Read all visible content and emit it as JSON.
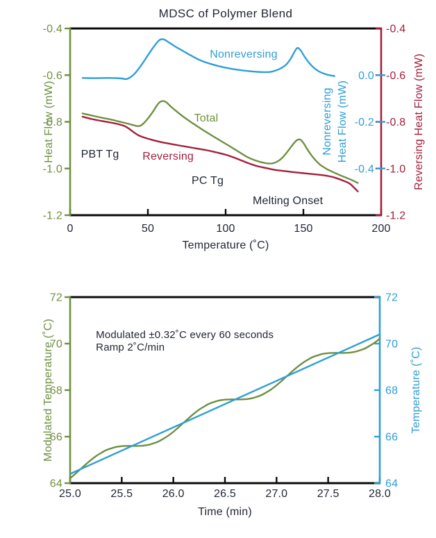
{
  "colors": {
    "green": "#6E8F3F",
    "blue": "#2E9ED6",
    "crimson": "#A31E3C",
    "ink": "#1E2430",
    "axis": "#0A0A0A"
  },
  "chart_data": [
    {
      "id": "mdsc",
      "type": "line",
      "title": "MDSC of Polymer Blend",
      "xlabel": "Temperature (˚C)",
      "xlim": [
        0,
        200
      ],
      "x_ticks": {
        "labels": [
          "0",
          "50",
          "100",
          "150",
          "200"
        ],
        "values": [
          0,
          50,
          100,
          150,
          200
        ]
      },
      "ylim": [
        -1.2,
        -0.4
      ],
      "grid": false,
      "legend": "inline-labels",
      "left_axis": {
        "title": "Heat Flow (mW)",
        "labels": [
          "-0.4",
          "-0.6",
          "-0.8",
          "-1.0",
          "-1.2"
        ],
        "values": [
          -0.4,
          -0.6,
          -0.8,
          -1.0,
          -1.2
        ],
        "color": "green"
      },
      "right_axis": {
        "title": "Reversing Heat Flow (mW)",
        "labels": [
          "-0.4",
          "-0.6",
          "-0.8",
          "-1.0",
          "-1.2"
        ],
        "values": [
          -0.4,
          -0.6,
          -0.8,
          -1.0,
          -1.2
        ],
        "color": "crimson"
      },
      "inner_right_axis": {
        "title_lines": [
          "Nonreversing",
          "Heat Flow (mW)"
        ],
        "labels": [
          "0.0",
          "-0.2",
          "-0.4"
        ],
        "values": [
          -0.6,
          -0.8,
          -1.0
        ],
        "color": "blue"
      },
      "series": [
        {
          "name": "Nonreversing",
          "color": "blue",
          "points": [
            [
              8,
              -0.612
            ],
            [
              15,
              -0.613
            ],
            [
              25,
              -0.612
            ],
            [
              33,
              -0.614
            ],
            [
              36,
              -0.617
            ],
            [
              39,
              -0.608
            ],
            [
              42,
              -0.59
            ],
            [
              46,
              -0.555
            ],
            [
              50,
              -0.515
            ],
            [
              54,
              -0.476
            ],
            [
              57,
              -0.452
            ],
            [
              59,
              -0.446
            ],
            [
              61,
              -0.449
            ],
            [
              64,
              -0.462
            ],
            [
              68,
              -0.479
            ],
            [
              73,
              -0.498
            ],
            [
              78,
              -0.517
            ],
            [
              84,
              -0.537
            ],
            [
              90,
              -0.551
            ],
            [
              96,
              -0.562
            ],
            [
              103,
              -0.572
            ],
            [
              110,
              -0.579
            ],
            [
              117,
              -0.584
            ],
            [
              124,
              -0.587
            ],
            [
              129,
              -0.586
            ],
            [
              133,
              -0.578
            ],
            [
              136,
              -0.569
            ],
            [
              139,
              -0.554
            ],
            [
              142,
              -0.528
            ],
            [
              144,
              -0.503
            ],
            [
              146,
              -0.484
            ],
            [
              148,
              -0.492
            ],
            [
              151,
              -0.523
            ],
            [
              154,
              -0.55
            ],
            [
              157,
              -0.57
            ],
            [
              160,
              -0.584
            ],
            [
              163,
              -0.593
            ],
            [
              166,
              -0.599
            ],
            [
              170,
              -0.604
            ]
          ]
        },
        {
          "name": "Total",
          "color": "green",
          "points": [
            [
              8,
              -0.764
            ],
            [
              14,
              -0.773
            ],
            [
              20,
              -0.782
            ],
            [
              26,
              -0.79
            ],
            [
              31,
              -0.798
            ],
            [
              36,
              -0.806
            ],
            [
              40,
              -0.813
            ],
            [
              43,
              -0.818
            ],
            [
              45,
              -0.817
            ],
            [
              47,
              -0.808
            ],
            [
              50,
              -0.786
            ],
            [
              53,
              -0.759
            ],
            [
              56,
              -0.728
            ],
            [
              58,
              -0.714
            ],
            [
              60,
              -0.711
            ],
            [
              62,
              -0.717
            ],
            [
              65,
              -0.736
            ],
            [
              69,
              -0.758
            ],
            [
              74,
              -0.784
            ],
            [
              79,
              -0.807
            ],
            [
              85,
              -0.833
            ],
            [
              91,
              -0.858
            ],
            [
              97,
              -0.882
            ],
            [
              103,
              -0.906
            ],
            [
              109,
              -0.931
            ],
            [
              114,
              -0.951
            ],
            [
              119,
              -0.965
            ],
            [
              123,
              -0.973
            ],
            [
              127,
              -0.978
            ],
            [
              130,
              -0.978
            ],
            [
              133,
              -0.971
            ],
            [
              136,
              -0.957
            ],
            [
              139,
              -0.934
            ],
            [
              142,
              -0.908
            ],
            [
              144,
              -0.891
            ],
            [
              146,
              -0.878
            ],
            [
              148,
              -0.876
            ],
            [
              150,
              -0.89
            ],
            [
              152,
              -0.912
            ],
            [
              155,
              -0.942
            ],
            [
              158,
              -0.966
            ],
            [
              161,
              -0.985
            ],
            [
              165,
              -1.002
            ],
            [
              169,
              -1.015
            ],
            [
              173,
              -1.027
            ],
            [
              177,
              -1.038
            ],
            [
              181,
              -1.049
            ],
            [
              185,
              -1.062
            ]
          ]
        },
        {
          "name": "Reversing",
          "color": "crimson",
          "points": [
            [
              8,
              -0.778
            ],
            [
              14,
              -0.788
            ],
            [
              20,
              -0.796
            ],
            [
              26,
              -0.803
            ],
            [
              31,
              -0.81
            ],
            [
              35,
              -0.818
            ],
            [
              38,
              -0.83
            ],
            [
              41,
              -0.845
            ],
            [
              44,
              -0.858
            ],
            [
              48,
              -0.868
            ],
            [
              53,
              -0.878
            ],
            [
              58,
              -0.886
            ],
            [
              64,
              -0.894
            ],
            [
              70,
              -0.901
            ],
            [
              76,
              -0.908
            ],
            [
              82,
              -0.915
            ],
            [
              88,
              -0.922
            ],
            [
              94,
              -0.931
            ],
            [
              100,
              -0.941
            ],
            [
              105,
              -0.952
            ],
            [
              110,
              -0.965
            ],
            [
              115,
              -0.978
            ],
            [
              120,
              -0.989
            ],
            [
              126,
              -0.998
            ],
            [
              132,
              -1.006
            ],
            [
              138,
              -1.011
            ],
            [
              144,
              -1.016
            ],
            [
              150,
              -1.02
            ],
            [
              156,
              -1.024
            ],
            [
              162,
              -1.028
            ],
            [
              168,
              -1.035
            ],
            [
              172,
              -1.043
            ],
            [
              176,
              -1.053
            ],
            [
              180,
              -1.066
            ],
            [
              185,
              -1.098
            ]
          ]
        }
      ],
      "annotations": [
        {
          "text": "Nonreversing",
          "x": 111.6,
          "y": -0.525,
          "color": "blue"
        },
        {
          "text": "Total",
          "x": 87.5,
          "y": -0.799,
          "color": "green"
        },
        {
          "text": "Reversing",
          "x": 63,
          "y": -0.962,
          "color": "crimson"
        },
        {
          "text": "PBT Tg",
          "x": 19.2,
          "y": -0.953,
          "color": "ink"
        },
        {
          "text": "PC Tg",
          "x": 88.4,
          "y": -1.066,
          "color": "ink"
        },
        {
          "text": "Melting Onset",
          "x": 140,
          "y": -1.152,
          "color": "ink"
        }
      ]
    },
    {
      "id": "modulation",
      "type": "line",
      "title": "",
      "xlabel": "Time (min)",
      "xlim": [
        25,
        28
      ],
      "x_ticks": {
        "labels": [
          "25.0",
          "25.5",
          "26.0",
          "26.5",
          "27.0",
          "27.5",
          "28.0"
        ],
        "values": [
          25,
          25.5,
          26,
          26.5,
          27,
          27.5,
          28
        ]
      },
      "ylim": [
        64,
        72
      ],
      "grid": false,
      "left_axis": {
        "title": "Modulated Temperature (˚C)",
        "labels": [
          "72",
          "70",
          "68",
          "66",
          "64"
        ],
        "values": [
          72,
          70,
          68,
          66,
          64
        ],
        "color": "green"
      },
      "right_axis": {
        "title": "Temperature (˚C)",
        "labels": [
          "72",
          "70",
          "68",
          "66",
          "64"
        ],
        "values": [
          72,
          70,
          68,
          66,
          64
        ],
        "color": "blue"
      },
      "series": [
        {
          "name": "Modulated Temperature",
          "color": "green",
          "x0": 25,
          "dx": 0.05,
          "values": [
            64.21,
            64.4,
            64.6,
            64.8,
            64.99,
            65.16,
            65.3,
            65.42,
            65.5,
            65.56,
            65.59,
            65.6,
            65.6,
            65.6,
            65.61,
            65.64,
            65.7,
            65.78,
            65.9,
            66.04,
            66.21,
            66.4,
            66.6,
            66.8,
            66.99,
            67.16,
            67.3,
            67.42,
            67.5,
            67.56,
            67.59,
            67.6,
            67.6,
            67.6,
            67.61,
            67.64,
            67.7,
            67.78,
            67.9,
            68.04,
            68.21,
            68.4,
            68.6,
            68.8,
            68.99,
            69.16,
            69.3,
            69.42,
            69.5,
            69.56,
            69.59,
            69.6,
            69.6,
            69.6,
            69.61,
            69.64,
            69.7,
            69.78,
            69.9,
            70.04,
            70.21
          ]
        },
        {
          "name": "Temperature",
          "color": "blue",
          "points": [
            [
              25,
              64.4
            ],
            [
              28,
              70.4
            ]
          ]
        }
      ],
      "annotations": [
        {
          "text": "Modulated ±0.32˚C every 60 seconds",
          "x": 25.25,
          "y": 70.24,
          "color": "ink",
          "anchor": "start",
          "size": 15
        },
        {
          "text": "Ramp 2˚C/min",
          "x": 25.25,
          "y": 69.7,
          "color": "ink",
          "anchor": "start",
          "size": 15
        }
      ]
    }
  ]
}
